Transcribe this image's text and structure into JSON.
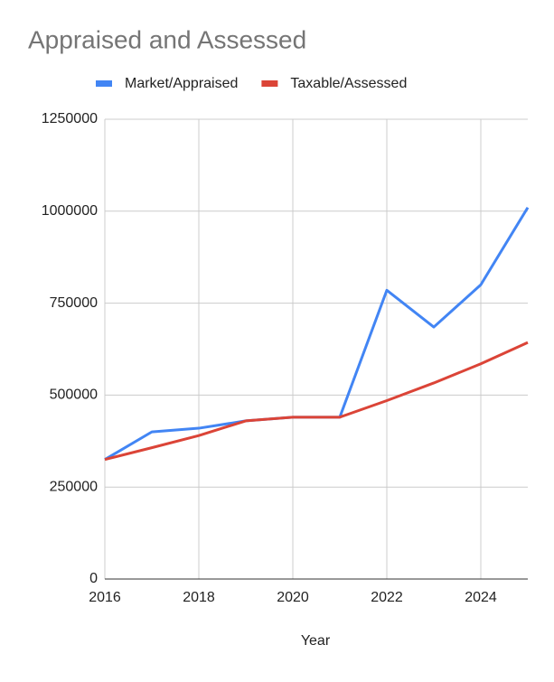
{
  "chart_data": {
    "type": "line",
    "title": "Appraised and Assessed",
    "x_label": "Year",
    "x": [
      2016,
      2017,
      2018,
      2019,
      2020,
      2021,
      2022,
      2023,
      2024,
      2025
    ],
    "series": [
      {
        "name": "Market/Appraised",
        "color": "#4285f4",
        "values": [
          325000,
          400000,
          410000,
          430000,
          440000,
          440000,
          785000,
          685000,
          800000,
          1010000
        ]
      },
      {
        "name": "Taxable/Assessed",
        "color": "#db4437",
        "values": [
          325000,
          357000,
          390000,
          430000,
          440000,
          440000,
          485000,
          533000,
          585000,
          643000
        ]
      }
    ],
    "xlim": [
      2016,
      2025
    ],
    "xticks": [
      2016,
      2018,
      2020,
      2022,
      2024
    ],
    "ylim": [
      0,
      1250000
    ],
    "yticks": [
      0,
      250000,
      500000,
      750000,
      1000000,
      1250000
    ],
    "grid": true,
    "legend": "top"
  }
}
